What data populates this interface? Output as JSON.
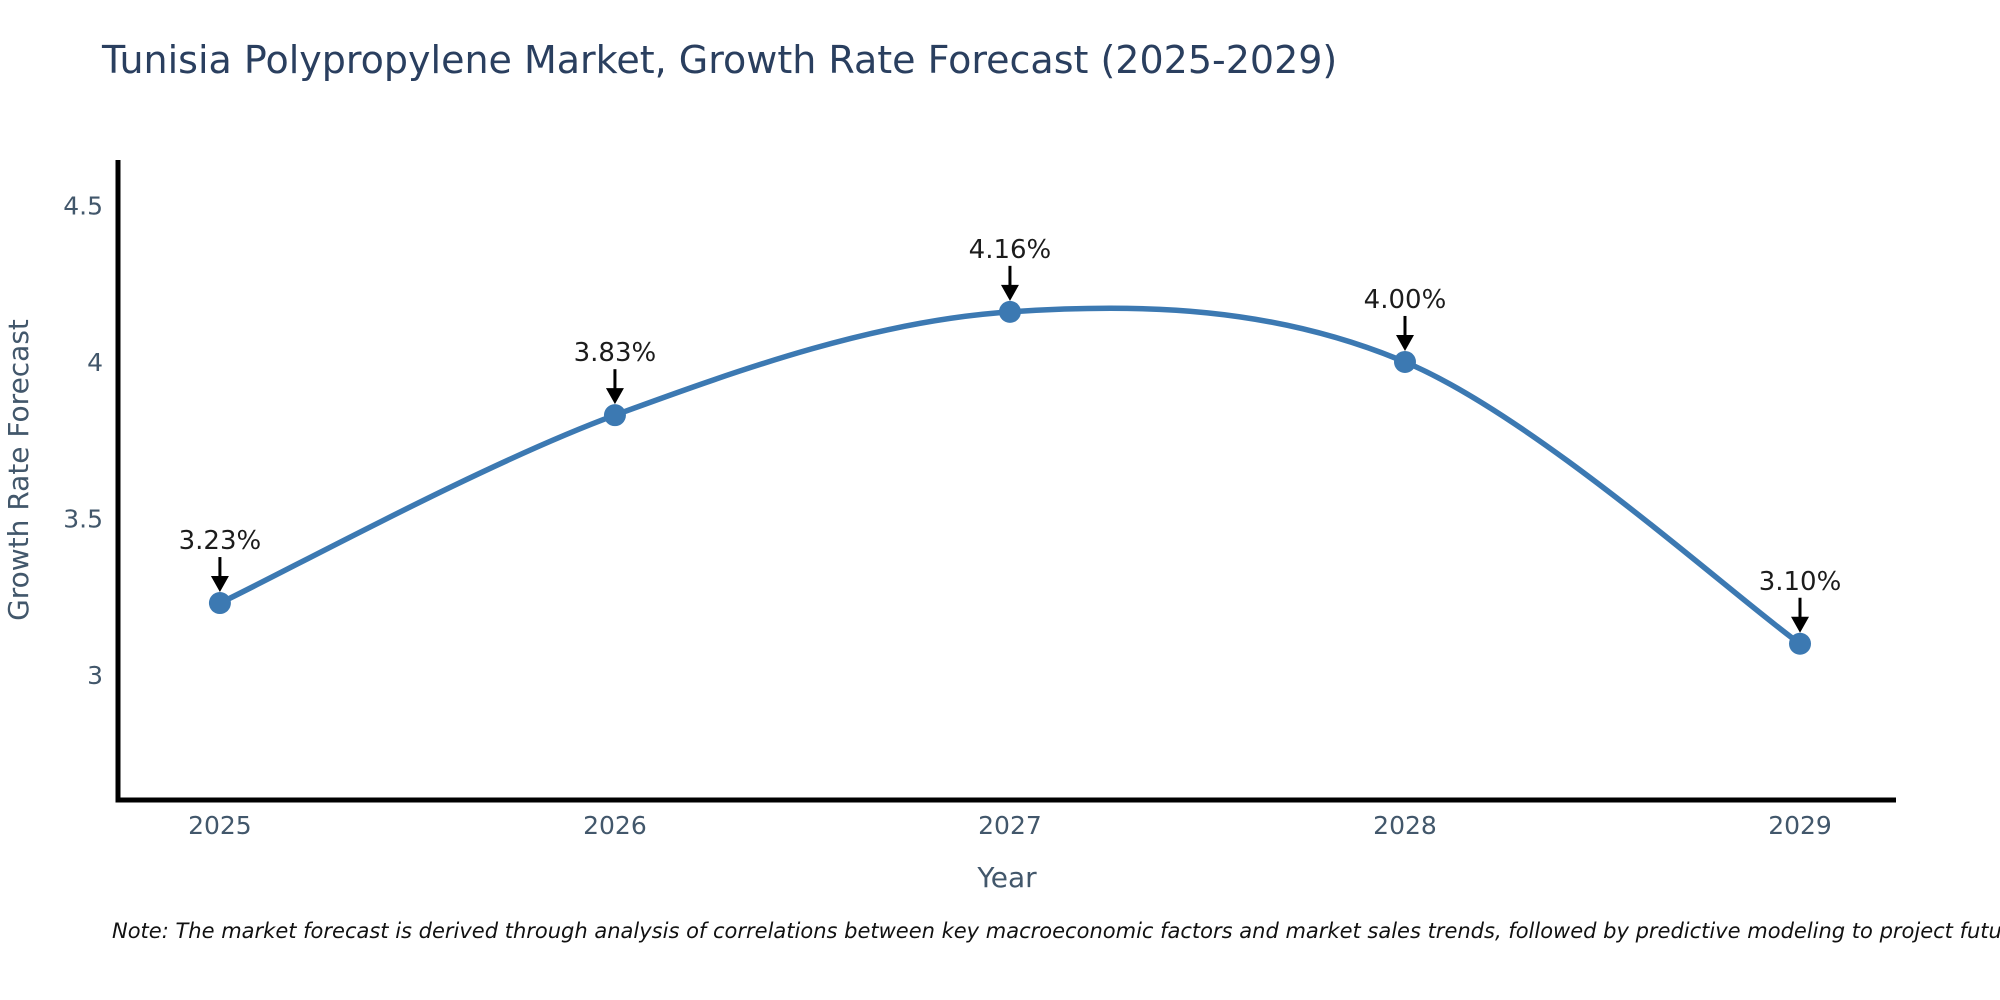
{
  "page": {
    "title": "Tunisia Polypropylene Market, Growth Rate Forecast (2025-2029)",
    "note": "Note: The market forecast is derived through analysis of correlations between key macroeconomic factors and market sales trends, followed by predictive modeling to project future sales"
  },
  "chart_data": {
    "type": "line",
    "line_shape": "spline",
    "title": "Tunisia Polypropylene Market, Growth Rate Forecast (2025-2029)",
    "xlabel": "Year",
    "ylabel": "Growth Rate Forecast",
    "x": [
      2025,
      2026,
      2027,
      2028,
      2029
    ],
    "values": [
      3.23,
      3.83,
      4.16,
      4.0,
      3.1
    ],
    "point_labels": [
      "3.23%",
      "3.83%",
      "4.16%",
      "4.00%",
      "3.10%"
    ],
    "x_tick_labels": [
      "2025",
      "2026",
      "2027",
      "2028",
      "2029"
    ],
    "y_tick_values": [
      3,
      3.5,
      4,
      4.5
    ],
    "y_tick_labels": [
      "3",
      "3.5",
      "4",
      "4.5"
    ],
    "xlim": [
      2024.742,
      2029.243
    ],
    "ylim": [
      2.601,
      4.645
    ],
    "grid": false,
    "legend": "none",
    "annotations": "arrow-down-to-point",
    "colors": {
      "line": "#3c79b2",
      "marker": "#3c79b2",
      "axis": "#000000",
      "annotation_text": "#1c1c1c",
      "annotation_arrow": "#000000",
      "tick_label": "#42576b",
      "axis_label": "#42576b",
      "title": "#2a3f5f",
      "note": "#111111"
    }
  }
}
